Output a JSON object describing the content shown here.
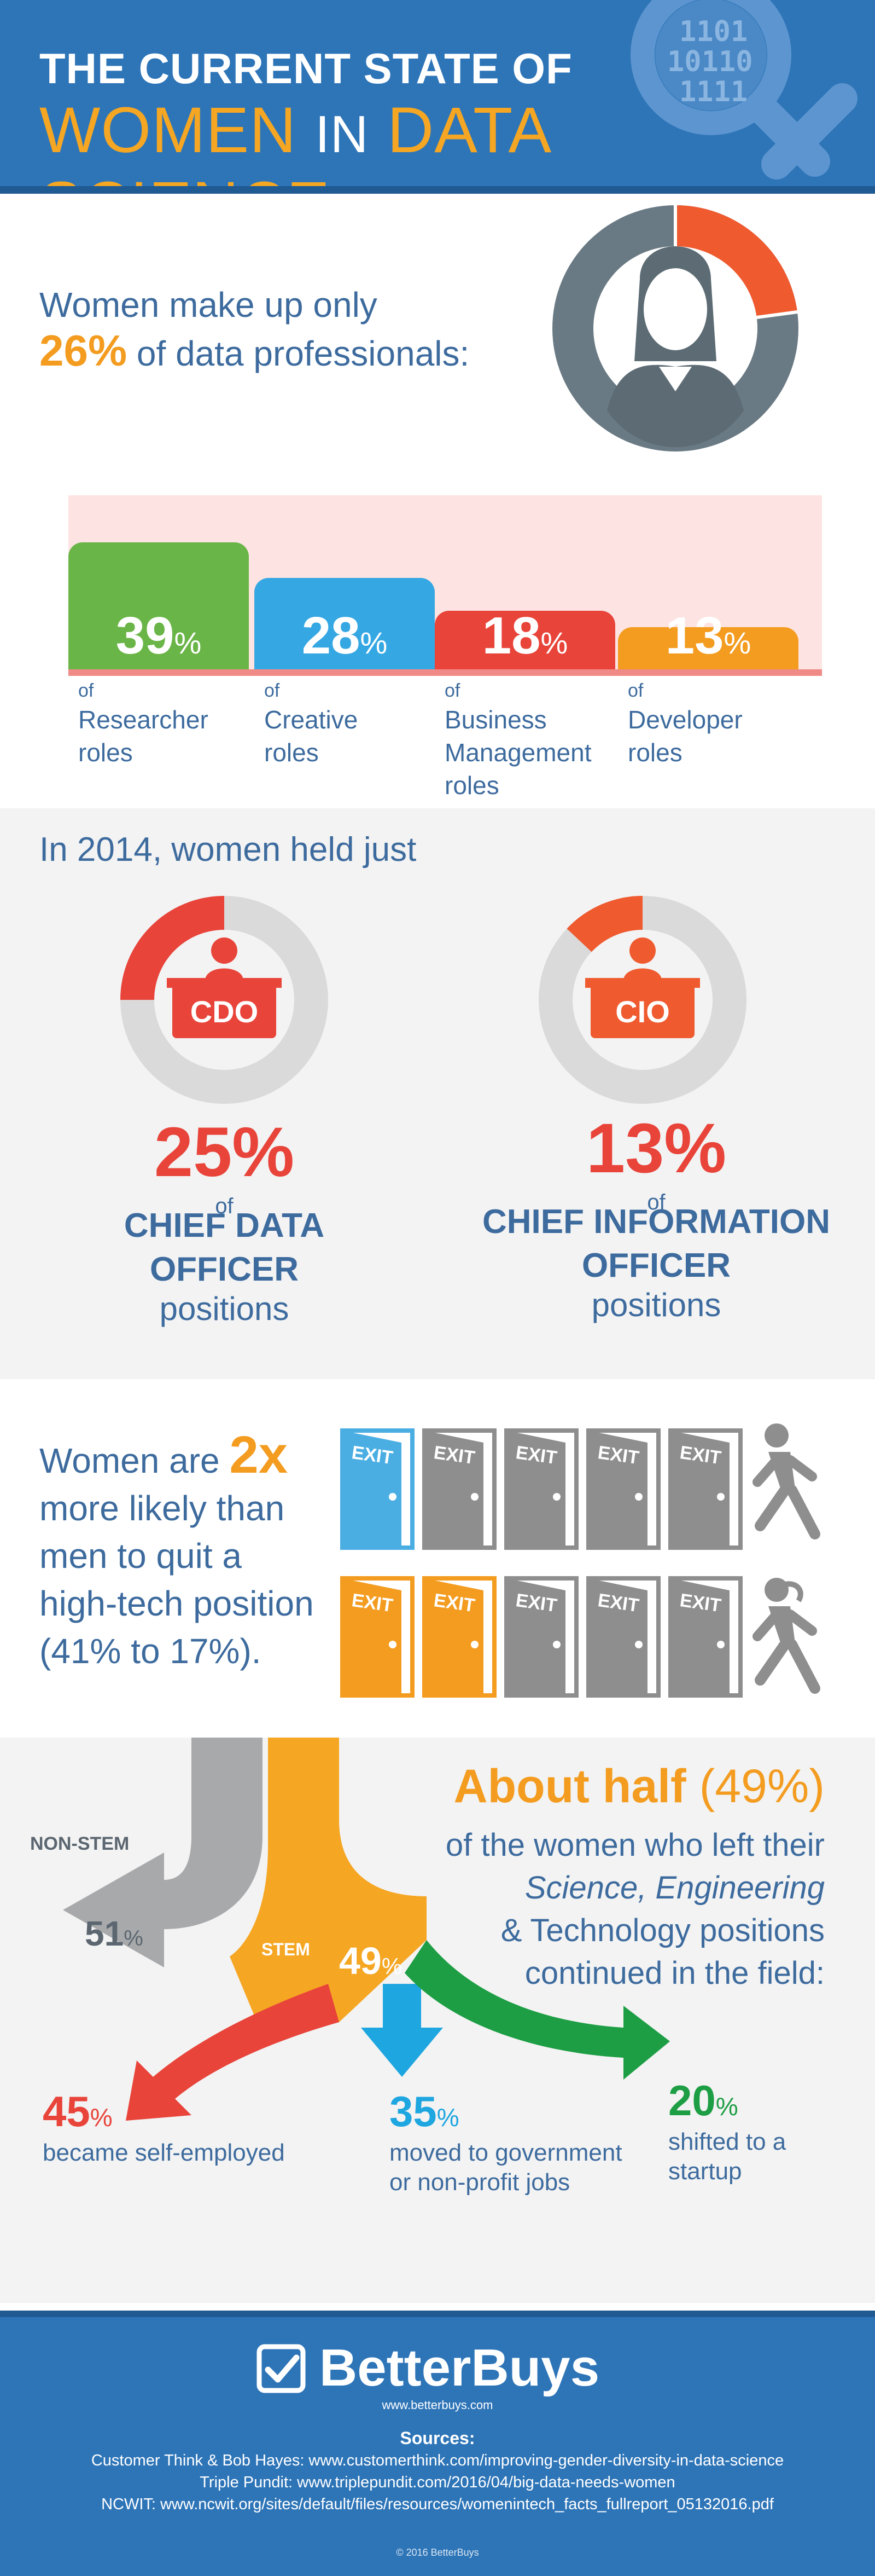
{
  "header": {
    "line1": "THE CURRENT STATE OF",
    "line2_a": "WOMEN",
    "line2_b": "IN",
    "line2_c": "DATA SCIENCE:",
    "binary": [
      "1101",
      "10110",
      "1111"
    ]
  },
  "share": {
    "text_a": "Women make up only",
    "percent": "26",
    "percent_sign": "%",
    "text_b": "of data professionals:",
    "value": 26
  },
  "roles": [
    {
      "value": "39",
      "sign": "%",
      "of": "of",
      "label": [
        "Researcher",
        "roles"
      ],
      "color": "#6ab547"
    },
    {
      "value": "28",
      "sign": "%",
      "of": "of",
      "label": [
        "Creative",
        "roles"
      ],
      "color": "#35a7e3"
    },
    {
      "value": "18",
      "sign": "%",
      "of": "of",
      "label": [
        "Business",
        "Management",
        "roles"
      ],
      "color": "#e8443a"
    },
    {
      "value": "13",
      "sign": "%",
      "of": "of",
      "label": [
        "Developer",
        "roles"
      ],
      "color": "#f39c20"
    }
  ],
  "executives": {
    "title": "In 2014, women held just",
    "items": [
      {
        "badge": "CDO",
        "percent": "25%",
        "of": "of",
        "title": [
          "CHIEF DATA",
          "OFFICER"
        ],
        "sub": "positions",
        "value": 25
      },
      {
        "badge": "CIO",
        "percent": "13%",
        "of": "of",
        "title": [
          "CHIEF INFORMATION",
          "OFFICER"
        ],
        "sub": "positions",
        "value": 13
      }
    ]
  },
  "quit": {
    "line1_a": "Women are",
    "multiplier": "2x",
    "lines": [
      "more likely than",
      "men to quit a",
      "high-tech position",
      "(41% to 17%)."
    ],
    "door_label": "EXIT"
  },
  "left_field": {
    "head_a": "About half",
    "head_b": "(49%)",
    "body": [
      "of the women who left their",
      "Science, Engineering",
      "& Technology positions",
      "continued in the field:"
    ],
    "nonstem_label": "NON-STEM",
    "nonstem_value": "51",
    "stem_label": "STEM",
    "stem_value": "49",
    "sign": "%",
    "outcomes": [
      {
        "value": "45",
        "label": [
          "became self-employed"
        ],
        "color": "#e8443a"
      },
      {
        "value": "35",
        "label": [
          "moved to government",
          "or non-profit jobs"
        ],
        "color": "#1ea6e0"
      },
      {
        "value": "20",
        "label": [
          "shifted to a",
          "startup"
        ],
        "color": "#1d9e44"
      }
    ]
  },
  "footer": {
    "logo": "BetterBuys",
    "url": "www.betterbuys.com",
    "sources_title": "Sources:",
    "sources": [
      "Customer Think & Bob Hayes: www.customerthink.com/improving-gender-diversity-in-data-science",
      "Triple Pundit: www.triplepundit.com/2016/04/big-data-needs-women",
      "NCWIT: www.ncwit.org/sites/default/files/resources/womenintech_facts_fullreport_05132016.pdf"
    ],
    "copyright": "© 2016 BetterBuys"
  }
}
